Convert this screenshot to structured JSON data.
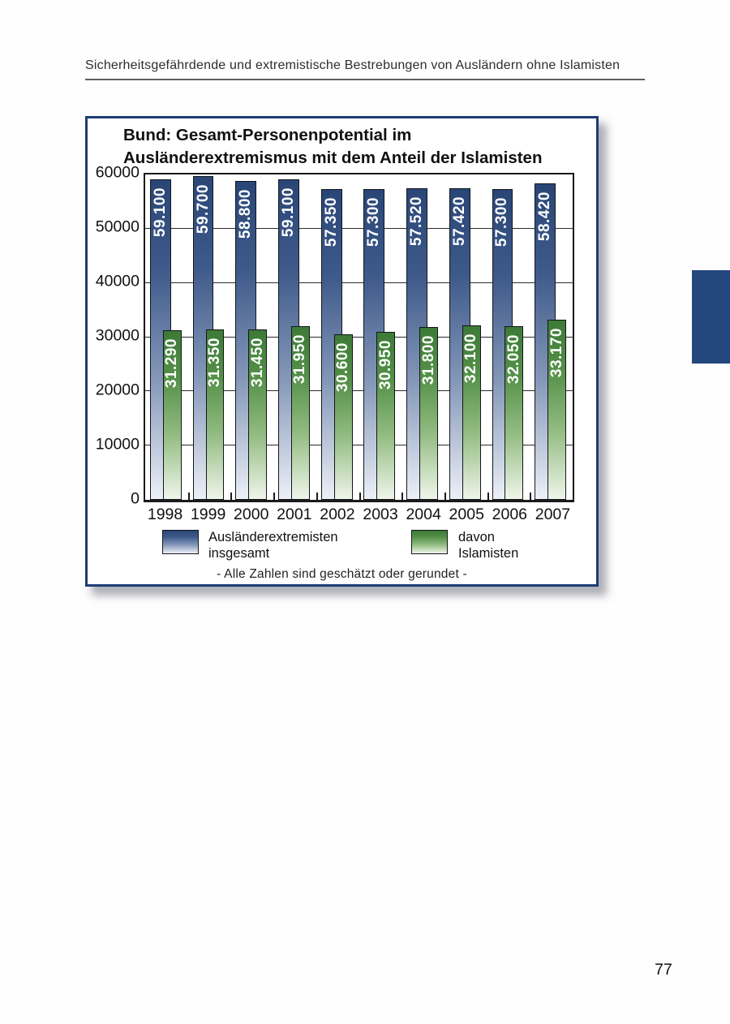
{
  "header": {
    "title": "Sicherheitsgefährdende und extremistische Bestrebungen von Ausländern ohne Islamisten"
  },
  "page": {
    "number": "77"
  },
  "chart": {
    "title_line1": "Bund: Gesamt-Personenpotential im",
    "title_line2": "Ausländerextremismus mit dem Anteil der Islamisten",
    "footnote": "- Alle Zahlen sind geschätzt oder gerundet -",
    "colors": {
      "panel_border": "#1E3C74",
      "side_tab": "#24477E",
      "grid": "#2a2a2a"
    }
  },
  "legend": {
    "items": [
      {
        "line1": "Ausländerextremisten",
        "line2": "insgesamt"
      },
      {
        "line1": "davon",
        "line2": "Islamisten"
      }
    ]
  },
  "chart_data": {
    "type": "bar",
    "title": "Bund: Gesamt-Personenpotential im Ausländerextremismus mit dem Anteil der Islamisten",
    "categories": [
      "1998",
      "1999",
      "2000",
      "2001",
      "2002",
      "2003",
      "2004",
      "2005",
      "2006",
      "2007"
    ],
    "series": [
      {
        "name": "Ausländerextremisten insgesamt",
        "values": [
          59100,
          59700,
          58800,
          59100,
          57350,
          57300,
          57520,
          57420,
          57300,
          58420
        ],
        "labels": [
          "59.100",
          "59.700",
          "58.800",
          "59.100",
          "57.350",
          "57.300",
          "57.520",
          "57.420",
          "57.300",
          "58.420"
        ],
        "gradient": [
          "#2A4677",
          "#3E5A8A",
          "#8497B8",
          "#ECF0F7"
        ]
      },
      {
        "name": "davon Islamisten",
        "values": [
          31290,
          31350,
          31450,
          31950,
          30600,
          30950,
          31800,
          32100,
          32050,
          33170
        ],
        "labels": [
          "31.290",
          "31.350",
          "31.450",
          "31.950",
          "30.600",
          "30.950",
          "31.800",
          "32.100",
          "32.050",
          "33.170"
        ],
        "gradient": [
          "#3C7A37",
          "#549048",
          "#93BC82",
          "#EFF5EA"
        ]
      }
    ],
    "xlabel": "",
    "ylabel": "",
    "ylim": [
      0,
      60000
    ],
    "ytick_step": 10000,
    "grid": "horizontal",
    "legend_position": "bottom",
    "bar_style": "overlapped-gradient",
    "annotation": "- Alle Zahlen sind geschätzt oder gerundet -"
  }
}
